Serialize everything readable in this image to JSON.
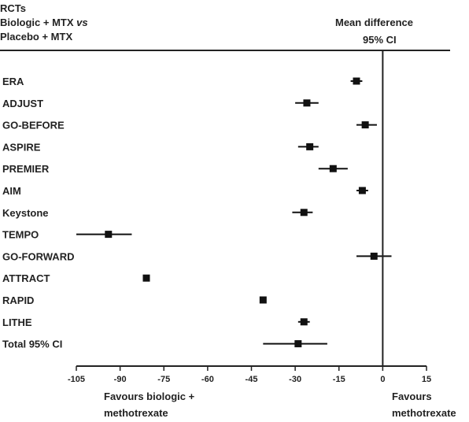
{
  "header": {
    "left_line1": "RCTs",
    "left_line2_prefix": "Biologic + MTX ",
    "left_line2_vs": "vs",
    "left_line3": "Placebo + MTX",
    "right_line1": "Mean difference",
    "right_line2": "95% CI"
  },
  "favours": {
    "left_line1": "Favours biologic +",
    "left_line2": "methotrexate",
    "right_line1": "Favours",
    "right_line2": "methotrexate"
  },
  "colors": {
    "marker": "#111111",
    "axis": "#222222",
    "text": "#222222"
  },
  "chart_data": {
    "type": "forest",
    "x_axis": {
      "min": -105,
      "max": 15,
      "ticks": [
        -105,
        -90,
        -75,
        -60,
        -45,
        -30,
        -15,
        0,
        15
      ]
    },
    "reference_line": 0,
    "studies": [
      {
        "name": "ERA",
        "mean": -9,
        "lower": -11,
        "upper": -7
      },
      {
        "name": "ADJUST",
        "mean": -26,
        "lower": -30,
        "upper": -22
      },
      {
        "name": "GO-BEFORE",
        "mean": -6,
        "lower": -9,
        "upper": -2
      },
      {
        "name": "ASPIRE",
        "mean": -25,
        "lower": -29,
        "upper": -22
      },
      {
        "name": "PREMIER",
        "mean": -17,
        "lower": -22,
        "upper": -12
      },
      {
        "name": "AIM",
        "mean": -7,
        "lower": -9,
        "upper": -5
      },
      {
        "name": "Keystone",
        "mean": -27,
        "lower": -31,
        "upper": -24
      },
      {
        "name": "TEMPO",
        "mean": -94,
        "lower": -105,
        "upper": -86
      },
      {
        "name": "GO-FORWARD",
        "mean": -3,
        "lower": -9,
        "upper": 3
      },
      {
        "name": "ATTRACT",
        "mean": -81,
        "lower": -82,
        "upper": -80
      },
      {
        "name": "RAPID",
        "mean": -41,
        "lower": -42,
        "upper": -40
      },
      {
        "name": "LITHE",
        "mean": -27,
        "lower": -29,
        "upper": -25
      },
      {
        "name": "Total 95% CI",
        "mean": -29,
        "lower": -41,
        "upper": -19
      }
    ]
  }
}
